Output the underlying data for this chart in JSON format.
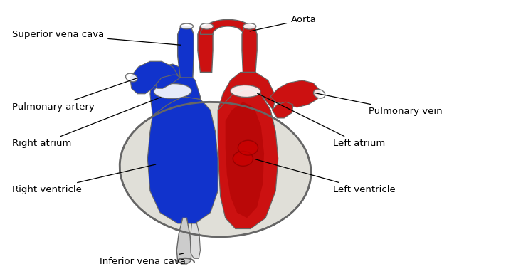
{
  "background_color": "#ffffff",
  "labels": {
    "superior_vena_cava": "Superior vena cava",
    "aorta": "Aorta",
    "pulmonary_artery": "Pulmonary artery",
    "pulmonary_vein": "Pulmonary vein",
    "right_atrium": "Right atrium",
    "left_atrium": "Left atrium",
    "right_ventricle": "Right ventricle",
    "left_ventricle": "Left ventricle",
    "inferior_vena_cava": "Inferior vena cava"
  },
  "colors": {
    "red_blood": "#cc1111",
    "blue_blood": "#1133cc",
    "heart_outline": "#666666",
    "white": "#ffffff",
    "pericardium_fill": "#e8e8e0",
    "pericardium_edge": "#888888",
    "ivc_color": "#aaaadd",
    "dark_red": "#8b0000"
  }
}
